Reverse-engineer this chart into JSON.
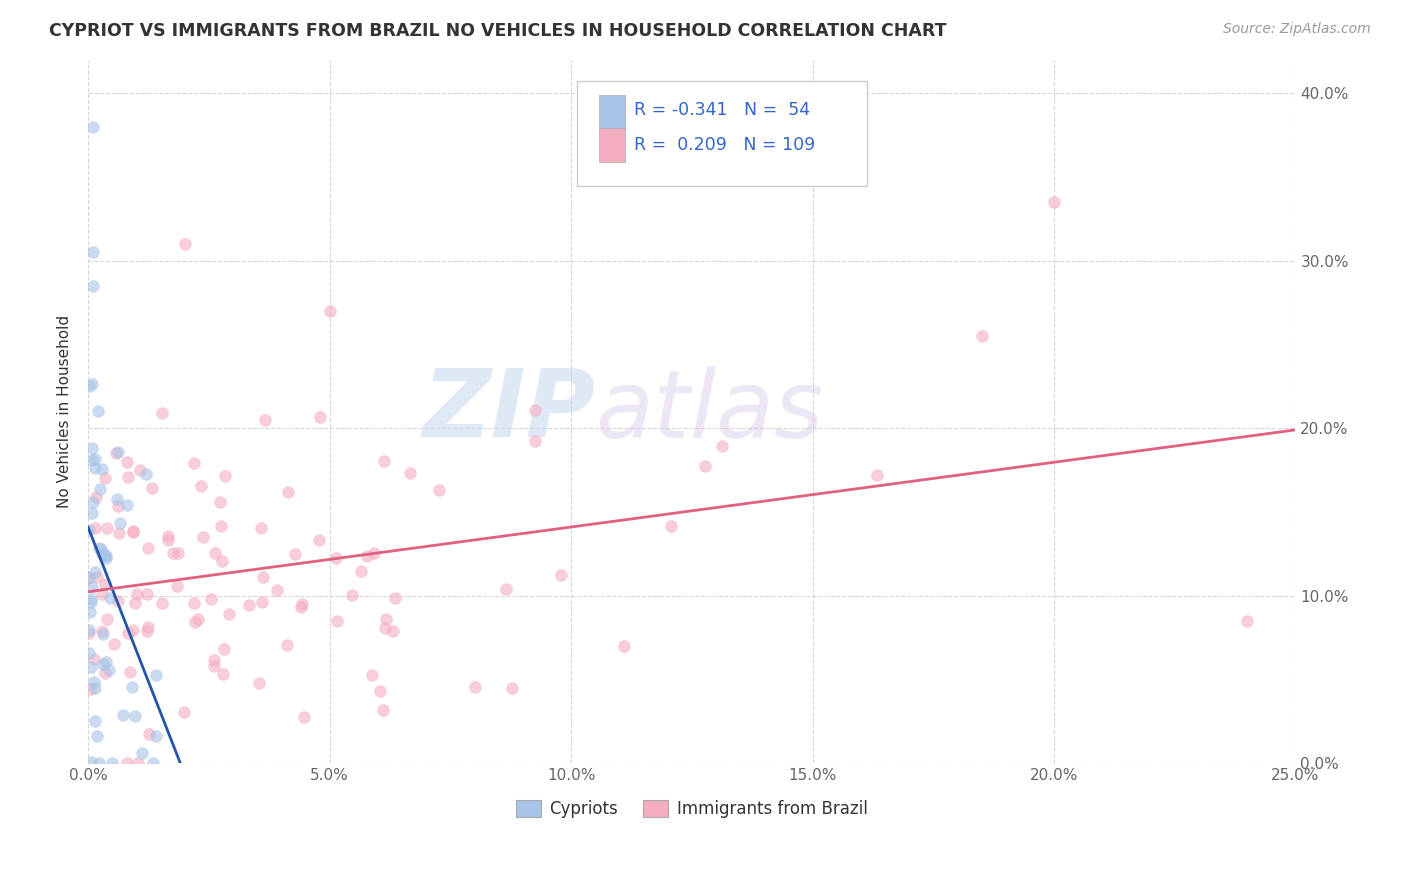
{
  "title": "CYPRIOT VS IMMIGRANTS FROM BRAZIL NO VEHICLES IN HOUSEHOLD CORRELATION CHART",
  "source_text": "Source: ZipAtlas.com",
  "ylabel": "No Vehicles in Household",
  "watermark_zip": "ZIP",
  "watermark_atlas": "atlas",
  "xlim": [
    0.0,
    0.25
  ],
  "ylim": [
    0.0,
    0.42
  ],
  "xtick_vals": [
    0.0,
    0.05,
    0.1,
    0.15,
    0.2,
    0.25
  ],
  "xticklabels": [
    "0.0%",
    "5.0%",
    "10.0%",
    "15.0%",
    "20.0%",
    "25.0%"
  ],
  "ytick_vals": [
    0.0,
    0.1,
    0.2,
    0.3,
    0.4
  ],
  "yticklabels_right": [
    "0.0%",
    "10.0%",
    "20.0%",
    "30.0%",
    "40.0%"
  ],
  "cypriot_color": "#a8c4e8",
  "brazil_color": "#f5adc0",
  "cypriot_edge_color": "#a8c4e8",
  "brazil_edge_color": "#f5adc0",
  "cypriot_line_color": "#2255aa",
  "brazil_line_color": "#e06080",
  "R_cypriot": -0.341,
  "N_cypriot": 54,
  "R_brazil": 0.209,
  "N_brazil": 109,
  "legend_text_color": "#3366cc",
  "legend_label_cypriot": "Cypriots",
  "legend_label_brazil": "Immigrants from Brazil",
  "title_color": "#333333",
  "axis_label_color": "#666666",
  "grid_color": "#cccccc",
  "background_color": "#ffffff",
  "marker_size": 70,
  "marker_alpha": 0.6,
  "cypriot_seed": 42,
  "brazil_seed": 99
}
